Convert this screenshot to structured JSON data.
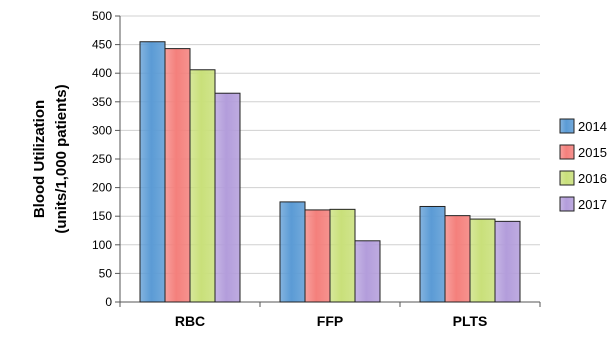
{
  "chart_data": {
    "type": "bar",
    "title": "",
    "xlabel": "",
    "ylabel_lines": [
      "Blood Utilization",
      "(units/1,000 patients)"
    ],
    "categories": [
      "RBC",
      "FFP",
      "PLTS"
    ],
    "series": [
      {
        "name": "2014",
        "values": [
          455,
          175,
          167
        ],
        "color": "#5b9bd5"
      },
      {
        "name": "2015",
        "values": [
          443,
          161,
          151
        ],
        "color": "#f4807c"
      },
      {
        "name": "2016",
        "values": [
          406,
          162,
          145
        ],
        "color": "#c9e07a"
      },
      {
        "name": "2017",
        "values": [
          365,
          107,
          141
        ],
        "color": "#b39ddb"
      }
    ],
    "ylim": [
      0,
      500
    ],
    "yticks": [
      0,
      50,
      100,
      150,
      200,
      250,
      300,
      350,
      400,
      450,
      500
    ],
    "grid": true,
    "legend_position": "right"
  }
}
